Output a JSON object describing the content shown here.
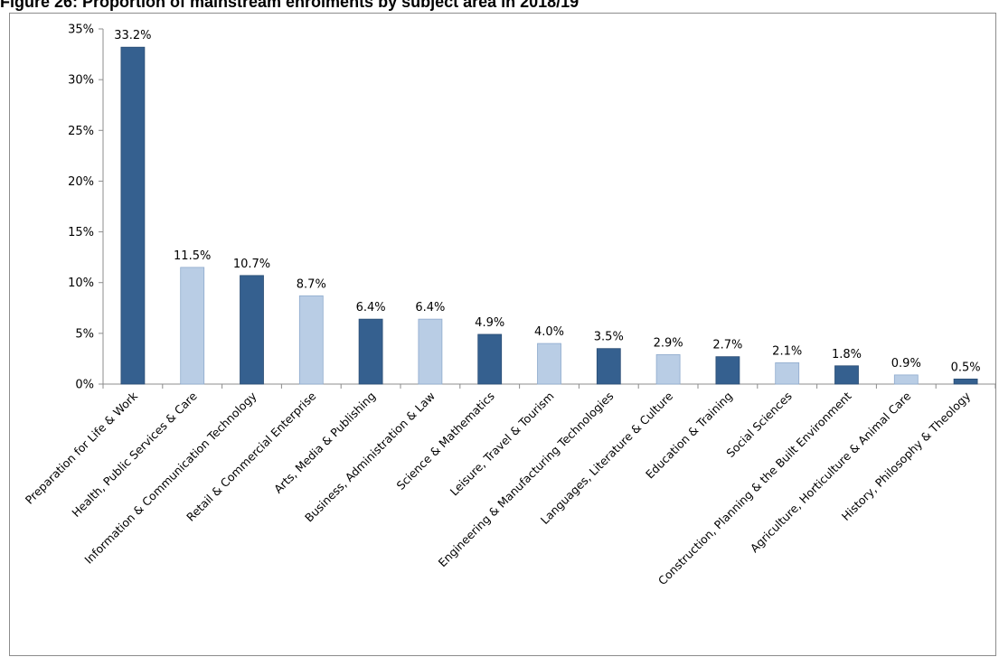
{
  "title": "Figure 26: Proportion of mainstream enrolments by subject area in 2018/19",
  "colors": {
    "dark_bar": "#35608f",
    "dark_bar_stroke": "#2a4d74",
    "light_bar": "#b9cde5",
    "light_bar_stroke": "#8eaacd",
    "axis": "#8c8c8c"
  },
  "chart_data": {
    "type": "bar",
    "categories": [
      "Preparation for Life & Work",
      "Health, Public Services & Care",
      "Information & Communication Technology",
      "Retail & Commercial Enterprise",
      "Arts, Media & Publishing",
      "Business, Administration & Law",
      "Science & Mathematics",
      "Leisure, Travel & Tourism",
      "Engineering & Manufacturing Technologies",
      "Languages, Literature & Culture",
      "Education & Training",
      "Social Sciences",
      "Construction, Planning & the Built Environment",
      "Agriculture, Horticulture & Animal Care",
      "History, Philosophy & Theology"
    ],
    "values": [
      33.2,
      11.5,
      10.7,
      8.7,
      6.4,
      6.4,
      4.9,
      4.0,
      3.5,
      2.9,
      2.7,
      2.1,
      1.8,
      0.9,
      0.5
    ],
    "data_labels": [
      "33.2%",
      "11.5%",
      "10.7%",
      "8.7%",
      "6.4%",
      "6.4%",
      "4.9%",
      "4.0%",
      "3.5%",
      "2.9%",
      "2.7%",
      "2.1%",
      "1.8%",
      "0.9%",
      "0.5%"
    ],
    "bar_shades": [
      "dark",
      "light",
      "dark",
      "light",
      "dark",
      "light",
      "dark",
      "light",
      "dark",
      "light",
      "dark",
      "light",
      "dark",
      "light",
      "dark"
    ],
    "y_ticks": [
      0,
      5,
      10,
      15,
      20,
      25,
      30,
      35
    ],
    "y_tick_labels": [
      "0%",
      "5%",
      "10%",
      "15%",
      "20%",
      "25%",
      "30%",
      "35%"
    ],
    "ylim": [
      0,
      35
    ],
    "xlabel": "",
    "ylabel": "",
    "grid": false,
    "legend": "none"
  }
}
